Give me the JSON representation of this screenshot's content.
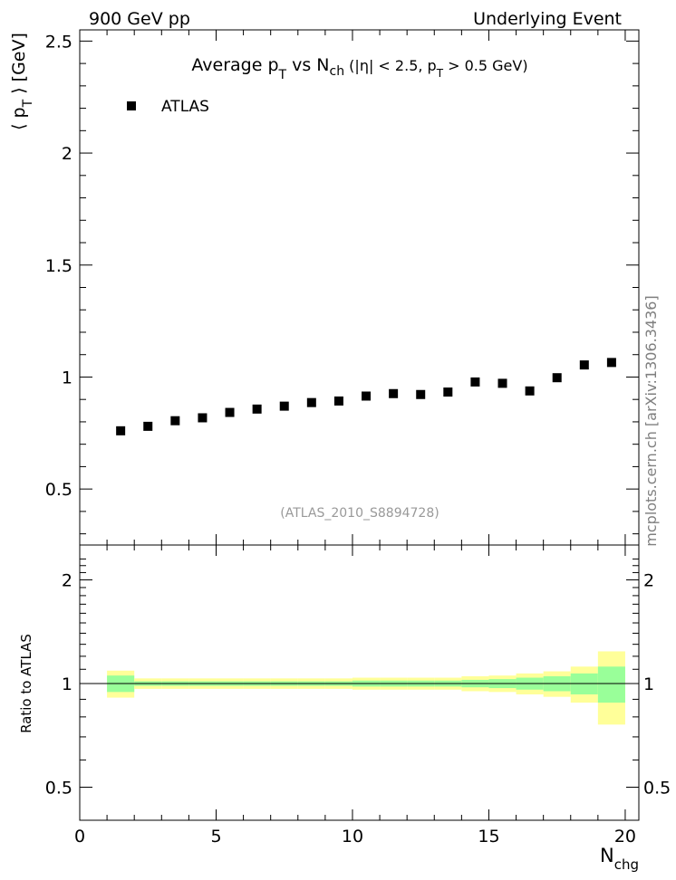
{
  "header": {
    "left": "900 GeV pp",
    "right": "Underlying Event"
  },
  "side_label": "mcplots.cern.ch [arXiv:1306.3436]",
  "chart_data": {
    "type": "scatter",
    "title_parts": {
      "a": "Average p",
      "a_sub": "T",
      "b": " vs N",
      "b_sub": "ch",
      "c": " (|η| < 2.5, p",
      "c_sub": "T",
      "d": " > 0.5 GeV)"
    },
    "ylabel_parts": {
      "a": "⟨ p",
      "sub": "T",
      "b": " ⟩ [GeV]"
    },
    "xlabel_parts": {
      "a": "N",
      "sub": "chg"
    },
    "ratio_ylabel": "Ratio to ATLAS",
    "analysis_id": "(ATLAS_2010_S8894728)",
    "legend": {
      "label": "ATLAS",
      "position": "top-left"
    },
    "xlim": [
      0,
      20.5
    ],
    "ylim": [
      0.25,
      2.55
    ],
    "ratio_ylim": [
      0.35,
      2.35
    ],
    "x_ticks": [
      "0",
      "5",
      "10",
      "15",
      "20"
    ],
    "y_ticks": [
      "0.5",
      "1",
      "1.5",
      "2",
      "2.5"
    ],
    "ratio_y_ticks": [
      "0.5",
      "1",
      "2"
    ],
    "series": [
      {
        "name": "ATLAS",
        "x": [
          1.5,
          2.5,
          3.5,
          4.5,
          5.5,
          6.5,
          7.5,
          8.5,
          9.5,
          10.5,
          11.5,
          12.5,
          13.5,
          14.5,
          15.5,
          16.5,
          17.5,
          18.5,
          19.5
        ],
        "y": [
          0.76,
          0.78,
          0.805,
          0.818,
          0.842,
          0.857,
          0.87,
          0.886,
          0.893,
          0.915,
          0.926,
          0.922,
          0.933,
          0.978,
          0.972,
          0.938,
          0.997,
          1.054,
          1.065
        ]
      }
    ],
    "ratio_bands": {
      "x_low": [
        1,
        2,
        3,
        4,
        5,
        6,
        7,
        8,
        9,
        10,
        11,
        12,
        13,
        14,
        15,
        16,
        17,
        18,
        19
      ],
      "x_high": [
        2,
        3,
        4,
        5,
        6,
        7,
        8,
        9,
        10,
        11,
        12,
        13,
        14,
        15,
        16,
        17,
        18,
        19,
        20
      ],
      "stat": [
        0.055,
        0.015,
        0.015,
        0.015,
        0.015,
        0.015,
        0.015,
        0.015,
        0.015,
        0.02,
        0.02,
        0.02,
        0.02,
        0.025,
        0.03,
        0.04,
        0.05,
        0.07,
        0.12
      ],
      "total": [
        0.09,
        0.035,
        0.035,
        0.035,
        0.035,
        0.035,
        0.035,
        0.035,
        0.035,
        0.04,
        0.04,
        0.04,
        0.04,
        0.05,
        0.055,
        0.07,
        0.085,
        0.12,
        0.24
      ]
    },
    "colors": {
      "stat": "#99ff99",
      "total": "#ffff99",
      "marker": "#000000"
    }
  }
}
